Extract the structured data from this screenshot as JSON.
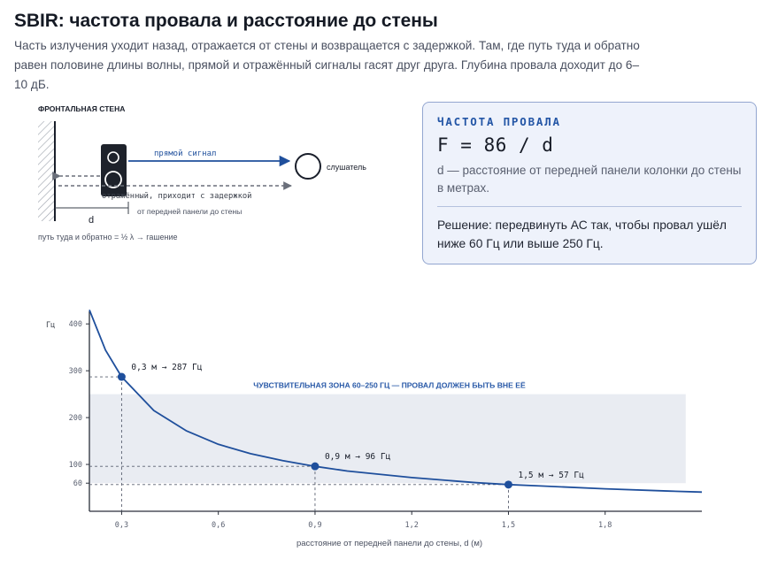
{
  "title": "SBIR: частота провала и расстояние до стены",
  "intro": "Часть излучения уходит назад, отражается от стены и возвращается с задержкой. Там, где путь туда и обратно равен половине длины волны, прямой и отражённый сигналы гасят друг друга. Глубина провала доходит до 6–10 дБ.",
  "diagram": {
    "wall_label": "ФРОНТАЛЬНАЯ СТЕНА",
    "direct_label": "прямой сигнал",
    "reflected_label": "отражённый, приходит с задержкой",
    "listener_label": "слушатель",
    "distance_symbol": "d",
    "distance_note": "от передней панели до стены",
    "path_note": "путь туда и обратно = ½ λ → гашение"
  },
  "formula_card": {
    "label": "ЧАСТОТА ПРОВАЛА",
    "formula": "F = 86 / d",
    "description": "d — расстояние от передней панели колонки до стены в метрах.",
    "solution": "Решение: передвинуть АС так, чтобы провал ушёл ниже 60 Гц или выше 250 Гц."
  },
  "colors": {
    "accent": "#1f4f9c",
    "band": "#e9ecf2",
    "card_bg": "#eef2fb",
    "card_border": "#93a6d0",
    "text_muted": "#5a6070"
  },
  "chart_data": {
    "type": "line",
    "ylabel": "Гц",
    "xlabel": "расстояние от передней панели до стены, d (м)",
    "x_ticks": [
      0.3,
      0.6,
      0.9,
      1.2,
      1.5,
      1.8
    ],
    "x_tick_labels": [
      "0,3",
      "0,6",
      "0,9",
      "1,2",
      "1,5",
      "1,8"
    ],
    "y_ticks": [
      60,
      100,
      200,
      300,
      400
    ],
    "y_tick_labels": [
      "60",
      "100",
      "200",
      "300",
      "400"
    ],
    "xlim": [
      0.2,
      2.1
    ],
    "ylim": [
      0,
      440
    ],
    "series": [
      {
        "x": [
          0.2,
          0.25,
          0.3,
          0.4,
          0.5,
          0.6,
          0.7,
          0.8,
          0.9,
          1.0,
          1.2,
          1.4,
          1.5,
          1.6,
          1.8,
          2.0,
          2.1
        ],
        "values": [
          430,
          344,
          287,
          215,
          172,
          143,
          123,
          108,
          96,
          86,
          72,
          61,
          57,
          54,
          48,
          43,
          41
        ]
      }
    ],
    "band": {
      "y_from": 60,
      "y_to": 250,
      "label": "ЧУВСТВИТЕЛЬНАЯ ЗОНА 60–250 ГЦ — ПРОВАЛ ДОЛЖЕН БЫТЬ ВНЕ ЕЁ"
    },
    "annotations": [
      {
        "x": 0.3,
        "y": 287,
        "label": "0,3 м → 287 Гц"
      },
      {
        "x": 0.9,
        "y": 96,
        "label": "0,9 м → 96 Гц"
      },
      {
        "x": 1.5,
        "y": 57,
        "label": "1,5 м → 57 Гц"
      }
    ],
    "grid": false
  }
}
